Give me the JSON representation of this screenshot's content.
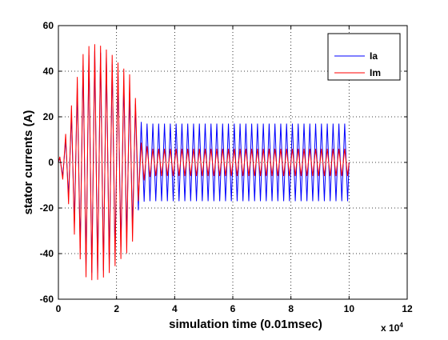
{
  "chart_data": {
    "type": "line",
    "title": "",
    "xlabel": "simulation time (0.01msec)",
    "ylabel": "stator currents (A)",
    "x_multiplier_label": "x 10",
    "x_multiplier_exponent": "4",
    "xlim": [
      0,
      12
    ],
    "ylim": [
      -60,
      60
    ],
    "xticks": [
      0,
      2,
      4,
      6,
      8,
      10,
      12
    ],
    "yticks": [
      -60,
      -40,
      -20,
      0,
      20,
      40,
      60
    ],
    "grid": true,
    "legend_position": "top-right",
    "series": [
      {
        "name": "Ia",
        "color": "#0000ff",
        "cycle_period": 0.2,
        "envelope": [
          [
            0,
            0
          ],
          [
            0.3,
            12
          ],
          [
            0.6,
            30
          ],
          [
            0.9,
            45
          ],
          [
            1.2,
            49
          ],
          [
            1.5,
            48
          ],
          [
            1.8,
            44
          ],
          [
            2.1,
            38
          ],
          [
            2.5,
            30
          ],
          [
            2.7,
            24
          ],
          [
            2.8,
            18
          ],
          [
            3.0,
            17
          ],
          [
            10.0,
            17
          ]
        ]
      },
      {
        "name": "Im",
        "color": "#ff0000",
        "cycle_period": 0.2,
        "envelope": [
          [
            0,
            0
          ],
          [
            0.3,
            15
          ],
          [
            0.6,
            35
          ],
          [
            0.9,
            50
          ],
          [
            1.2,
            52
          ],
          [
            1.5,
            51
          ],
          [
            1.8,
            48
          ],
          [
            2.1,
            43
          ],
          [
            2.5,
            38
          ],
          [
            2.7,
            25
          ],
          [
            2.8,
            9
          ],
          [
            3.2,
            6
          ],
          [
            10.0,
            6
          ]
        ]
      }
    ]
  }
}
